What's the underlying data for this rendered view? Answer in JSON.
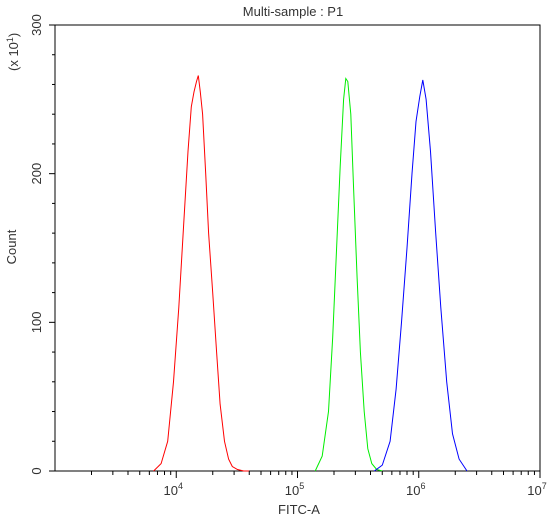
{
  "chart_data": {
    "type": "line",
    "title": "Multi-sample : P1",
    "xlabel": "FITC-A",
    "ylabel": "Count",
    "y_multiplier": "(x 10",
    "y_multiplier_exp": "1",
    "y_multiplier_close": ")",
    "x_scale": "log",
    "xlim": [
      1000,
      10000000
    ],
    "ylim": [
      0,
      300
    ],
    "x_ticks": [
      {
        "base": "10",
        "exp": "4",
        "value": 10000
      },
      {
        "base": "10",
        "exp": "5",
        "value": 100000
      },
      {
        "base": "10",
        "exp": "6",
        "value": 1000000
      },
      {
        "base": "10",
        "exp": "7",
        "value": 10000000
      }
    ],
    "y_ticks": [
      "0",
      "100",
      "200",
      "300"
    ],
    "y_tick_values": [
      0,
      100,
      200,
      300
    ],
    "grid": false,
    "series": [
      {
        "color": "#ff0000",
        "x": [
          6500,
          7500,
          8500,
          9500,
          10500,
          11500,
          12500,
          13300,
          14000,
          14700,
          15200,
          15800,
          16500,
          17500,
          18500,
          20000,
          21500,
          23000,
          25000,
          27000,
          29000,
          32000,
          36000,
          40000
        ],
        "y": [
          0,
          5,
          20,
          60,
          110,
          165,
          215,
          245,
          255,
          262,
          266,
          255,
          240,
          200,
          160,
          120,
          80,
          45,
          20,
          8,
          3,
          1,
          0,
          0
        ]
      },
      {
        "color": "#00ee00",
        "x": [
          140000,
          160000,
          180000,
          195000,
          210000,
          225000,
          240000,
          250000,
          260000,
          275000,
          290000,
          310000,
          330000,
          355000,
          380000,
          410000,
          450000,
          500000
        ],
        "y": [
          0,
          10,
          40,
          90,
          150,
          205,
          250,
          264,
          262,
          240,
          190,
          130,
          80,
          40,
          15,
          5,
          1,
          0
        ]
      },
      {
        "color": "#0000ff",
        "x": [
          430000,
          500000,
          580000,
          650000,
          720000,
          800000,
          880000,
          950000,
          1020000,
          1080000,
          1150000,
          1250000,
          1380000,
          1520000,
          1700000,
          1900000,
          2150000,
          2500000
        ],
        "y": [
          0,
          4,
          20,
          55,
          100,
          150,
          200,
          235,
          252,
          263,
          250,
          215,
          160,
          110,
          60,
          25,
          8,
          0
        ]
      }
    ]
  }
}
